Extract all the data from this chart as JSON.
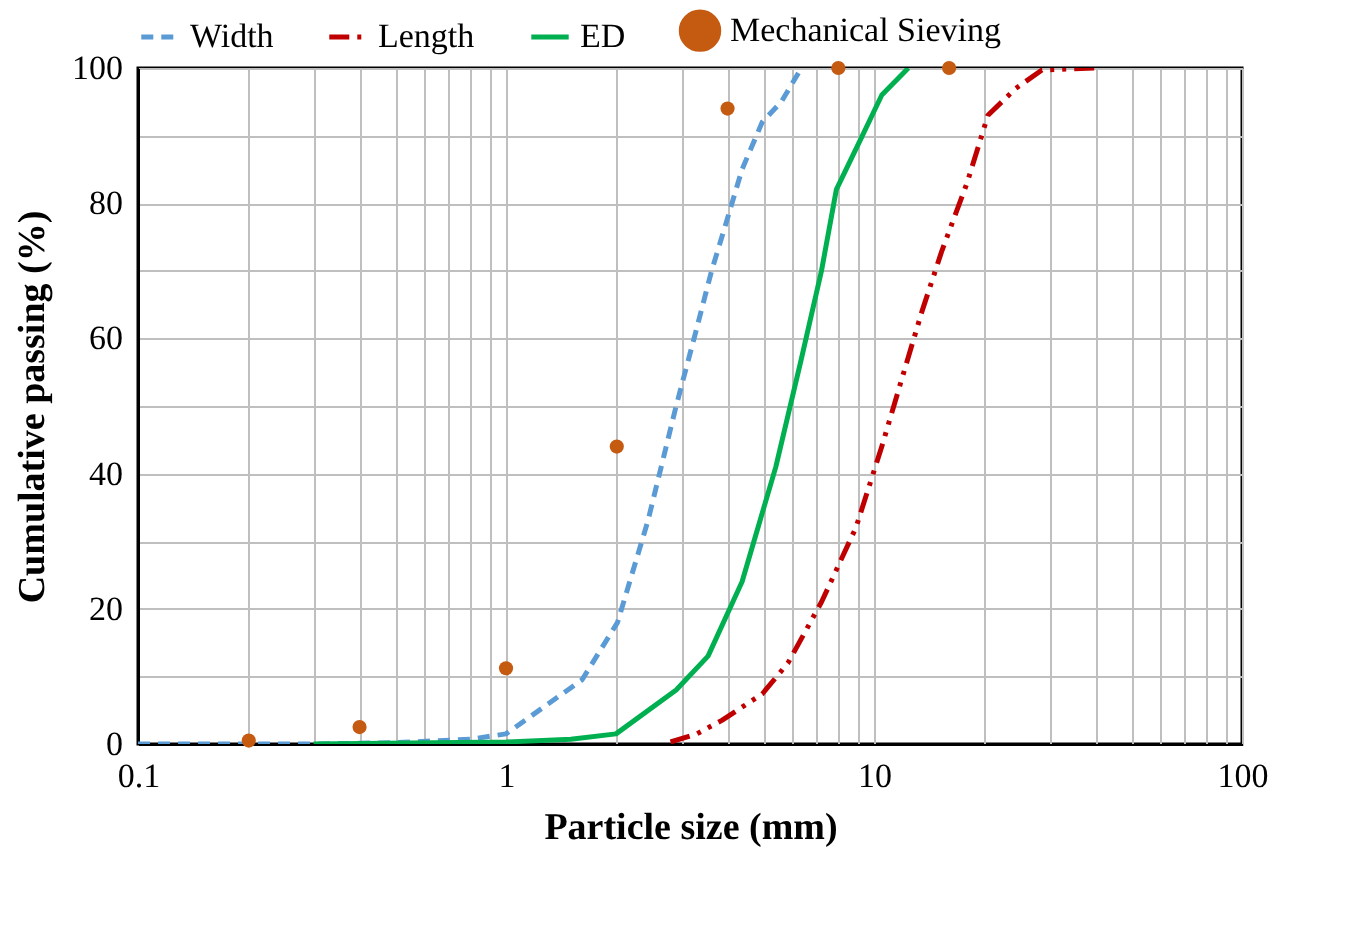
{
  "chart_data": {
    "type": "line",
    "xlabel": "Particle size (mm)",
    "ylabel": "Cumulative passing (%)",
    "log": "x",
    "grid": true,
    "legend": "top",
    "xlim": [
      0.1,
      100
    ],
    "xticks": [
      0.1,
      {
        "value": 0.2,
        "label": null
      },
      {
        "value": 0.3,
        "label": null
      },
      {
        "value": 0.4,
        "label": null
      },
      {
        "value": 0.5,
        "label": null
      },
      {
        "value": 0.6,
        "label": null
      },
      {
        "value": 0.7,
        "label": null
      },
      {
        "value": 0.8,
        "label": null
      },
      {
        "value": 0.9,
        "label": null
      },
      1,
      {
        "value": 2,
        "label": null
      },
      {
        "value": 3,
        "label": null
      },
      {
        "value": 4,
        "label": null
      },
      {
        "value": 5,
        "label": null
      },
      {
        "value": 6,
        "label": null
      },
      {
        "value": 7,
        "label": null
      },
      {
        "value": 8,
        "label": null
      },
      {
        "value": 9,
        "label": null
      },
      10,
      {
        "value": 20,
        "label": null
      },
      {
        "value": 30,
        "label": null
      },
      {
        "value": 40,
        "label": null
      },
      {
        "value": 50,
        "label": null
      },
      {
        "value": 60,
        "label": null
      },
      {
        "value": 70,
        "label": null
      },
      {
        "value": 80,
        "label": null
      },
      {
        "value": 90,
        "label": null
      },
      100
    ],
    "ylim": [
      0,
      100
    ],
    "yticks": [
      0,
      {
        "value": 10,
        "label": null
      },
      20,
      {
        "value": 30,
        "label": null
      },
      40,
      {
        "value": 50,
        "label": null
      },
      60,
      {
        "value": 70,
        "label": null
      },
      80,
      {
        "value": 90,
        "label": null
      },
      100
    ],
    "series": [
      {
        "name": "Width",
        "color": "#5b9bd5",
        "line_style": "dashed",
        "marker": "none",
        "x": [
          0.1,
          0.3,
          0.5,
          0.8,
          1,
          1.61,
          2.01,
          2.43,
          2.9,
          3.28,
          3.62,
          3.96,
          4.38,
          4.97,
          5.6,
          6.35
        ],
        "values": [
          0,
          0,
          0.2,
          0.7,
          1.5,
          9.5,
          18,
          33,
          50,
          61,
          70,
          77,
          85,
          92,
          95,
          100
        ]
      },
      {
        "name": "Length",
        "color": "#c00000",
        "line_style": "dashdot",
        "marker": "none",
        "x": [
          2.8,
          3.3,
          3.86,
          4.97,
          5.84,
          7.2,
          8.93,
          10.5,
          11.9,
          13.5,
          15.3,
          17.9,
          20.4,
          24.3,
          28.6,
          40
        ],
        "values": [
          0.3,
          1.5,
          3.5,
          7.4,
          12,
          21,
          32,
          44,
          54,
          64,
          73,
          83,
          93,
          97,
          99.7,
          100
        ]
      },
      {
        "name": "ED",
        "color": "#00b050",
        "line_style": "solid",
        "marker": "none",
        "x": [
          0.3,
          1,
          1.5,
          1.99,
          2.9,
          3.54,
          4.38,
          5.41,
          6.35,
          7.2,
          7.9,
          9.3,
          10.5,
          12.4
        ],
        "values": [
          0,
          0.3,
          0.7,
          1.5,
          8,
          13,
          24,
          41,
          57,
          70,
          82,
          90,
          96,
          100
        ]
      },
      {
        "name": "Mechanical Sieving",
        "type": "scatter",
        "color": "#c55a11",
        "marker": "circle",
        "x": [
          0.2,
          0.4,
          1,
          2,
          4,
          8,
          16
        ],
        "values": [
          0.5,
          2.5,
          11.2,
          44,
          94,
          100,
          100
        ]
      }
    ]
  }
}
